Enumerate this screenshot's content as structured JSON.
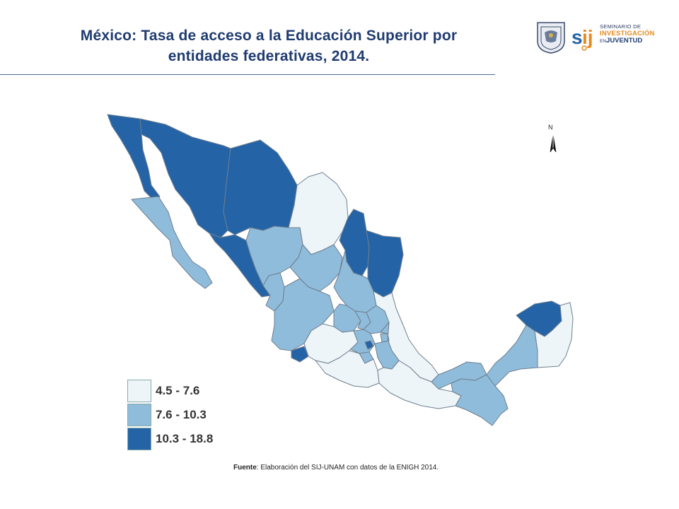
{
  "title": {
    "line1": "México:  Tasa de acceso a la Educación Superior por",
    "line2": "entidades federativas, 2014."
  },
  "logos": {
    "line1": "SEMINARIO DE",
    "line2": "INVESTIGACIÓN",
    "line3_prefix": "EN",
    "line3": "JUVENTUD",
    "sij_icon": "sij-logo-icon",
    "seal_icon": "unam-seal-icon"
  },
  "north_arrow": {
    "letter": "N"
  },
  "legend": {
    "items": [
      {
        "label": "4.5 - 7.6",
        "color": "#edf5f8"
      },
      {
        "label": "7.6 - 10.3",
        "color": "#8fbcdb"
      },
      {
        "label": "10.3 - 18.8",
        "color": "#2463a6"
      }
    ]
  },
  "source": {
    "label": "Fuente",
    "text": ": Elaboración del SIJ-UNAM con datos de la ENIGH 2014."
  },
  "colors": {
    "low": "#edf5f8",
    "mid": "#8fbcdb",
    "high": "#2463a6",
    "border": "#6f7f8f",
    "title": "#1f3b70"
  }
}
